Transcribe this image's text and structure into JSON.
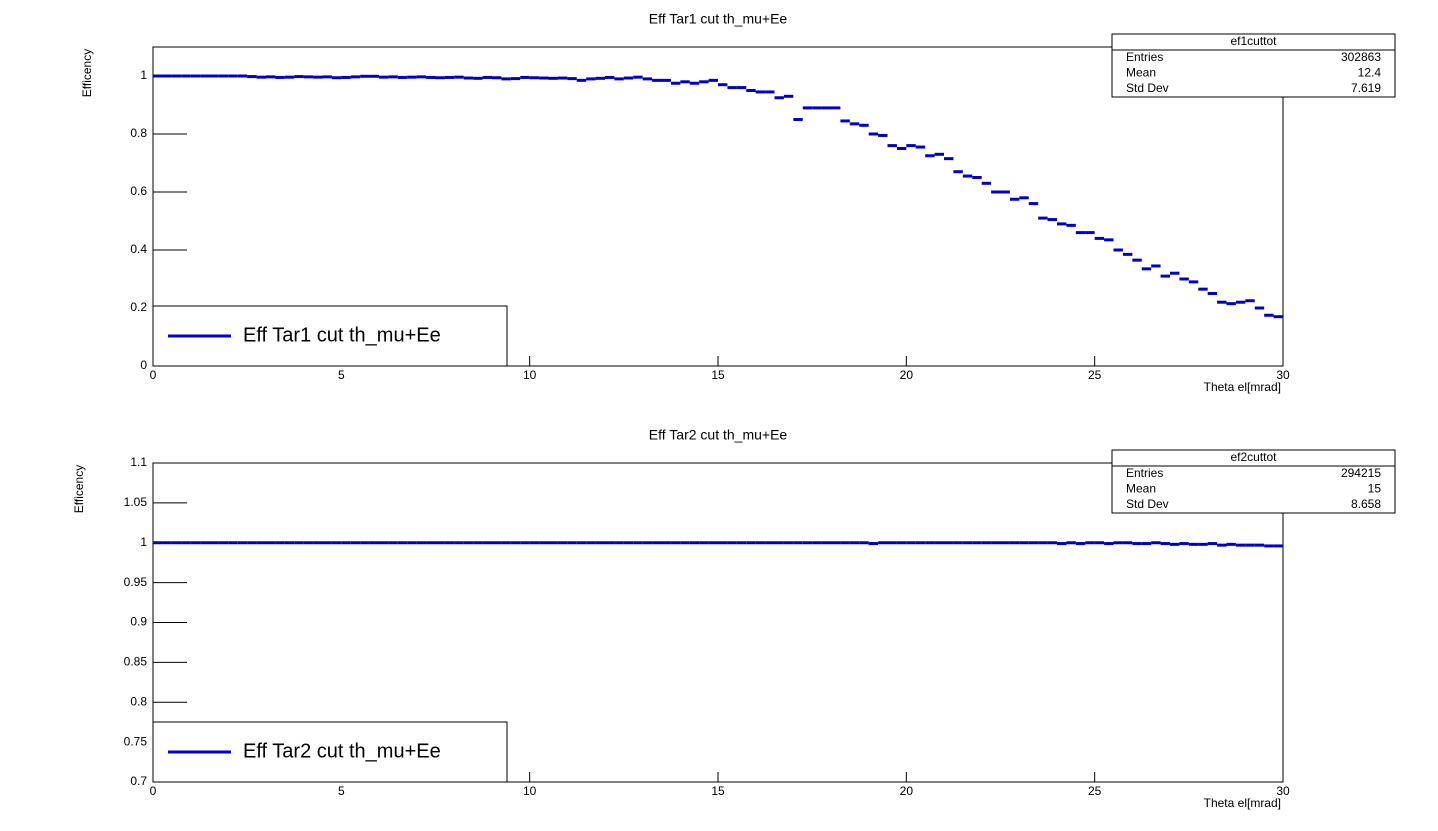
{
  "chart_data": [
    {
      "type": "histogram",
      "title": "Eff Tar1 cut th_mu+Ee",
      "x_label": "Theta el[mrad]",
      "y_label": "Efficency",
      "xlim": [
        0,
        30
      ],
      "ylim": [
        0,
        1.1
      ],
      "xticks": [
        0,
        5,
        10,
        15,
        20,
        25,
        30
      ],
      "yticks": [
        0,
        0.2,
        0.4,
        0.6,
        0.8,
        1
      ],
      "legend": "bottom-left",
      "stats": {
        "name": "ef1cuttot",
        "rows": [
          {
            "label": "Entries",
            "value": 302863
          },
          {
            "label": "Mean",
            "value": 12.4
          },
          {
            "label": "Std Dev",
            "value": 7.619
          }
        ]
      },
      "bins": [
        0,
        0.25,
        0.5,
        0.75,
        1,
        1.25,
        1.5,
        1.75,
        2,
        2.25,
        2.5,
        2.75,
        3,
        3.25,
        3.5,
        3.75,
        4,
        4.25,
        4.5,
        4.75,
        5,
        5.25,
        5.5,
        5.75,
        6,
        6.25,
        6.5,
        6.75,
        7,
        7.25,
        7.5,
        7.75,
        8,
        8.25,
        8.5,
        8.75,
        9,
        9.25,
        9.5,
        9.75,
        10,
        10.25,
        10.5,
        10.75,
        11,
        11.25,
        11.5,
        11.75,
        12,
        12.25,
        12.5,
        12.75,
        13,
        13.25,
        13.5,
        13.75,
        14,
        14.25,
        14.5,
        14.75,
        15,
        15.25,
        15.5,
        15.75,
        16,
        16.25,
        16.5,
        16.75,
        17,
        17.25,
        17.5,
        17.75,
        18,
        18.25,
        18.5,
        18.75,
        19,
        19.25,
        19.5,
        19.75,
        20,
        20.25,
        20.5,
        20.75,
        21,
        21.25,
        21.5,
        21.75,
        22,
        22.25,
        22.5,
        22.75,
        23,
        23.25,
        23.5,
        23.75,
        24,
        24.25,
        24.5,
        24.75,
        25,
        25.25,
        25.5,
        25.75,
        26,
        26.25,
        26.5,
        26.75,
        27,
        27.25,
        27.5,
        27.75,
        28,
        28.25,
        28.5,
        28.75,
        29,
        29.25,
        29.5,
        29.75,
        30
      ],
      "series": [
        {
          "name": "Eff Tar1 cut th_mu+Ee",
          "color": "#0000cc",
          "values": [
            1,
            1,
            1,
            1,
            1,
            1,
            1,
            1,
            1,
            1,
            0.998,
            0.996,
            0.997,
            0.995,
            0.996,
            0.998,
            0.997,
            0.996,
            0.997,
            0.994,
            0.995,
            0.997,
            0.999,
            0.999,
            0.996,
            0.997,
            0.995,
            0.996,
            0.997,
            0.995,
            0.994,
            0.995,
            0.996,
            0.993,
            0.992,
            0.995,
            0.994,
            0.99,
            0.991,
            0.995,
            0.994,
            0.993,
            0.992,
            0.993,
            0.991,
            0.985,
            0.99,
            0.992,
            0.995,
            0.99,
            0.993,
            0.996,
            0.99,
            0.985,
            0.985,
            0.975,
            0.98,
            0.975,
            0.98,
            0.985,
            0.97,
            0.96,
            0.96,
            0.95,
            0.945,
            0.945,
            0.925,
            0.93,
            0.85,
            0.89,
            0.89,
            0.89,
            0.89,
            0.845,
            0.835,
            0.83,
            0.8,
            0.795,
            0.76,
            0.75,
            0.76,
            0.755,
            0.725,
            0.73,
            0.715,
            0.67,
            0.655,
            0.65,
            0.63,
            0.6,
            0.6,
            0.575,
            0.58,
            0.56,
            0.51,
            0.505,
            0.49,
            0.485,
            0.46,
            0.46,
            0.44,
            0.435,
            0.4,
            0.385,
            0.365,
            0.335,
            0.345,
            0.31,
            0.32,
            0.3,
            0.29,
            0.265,
            0.25,
            0.22,
            0.215,
            0.22,
            0.225,
            0.2,
            0.175,
            0.17
          ]
        }
      ]
    },
    {
      "type": "histogram",
      "title": "Eff Tar2 cut th_mu+Ee",
      "x_label": "Theta el[mrad]",
      "y_label": "Efficency",
      "xlim": [
        0,
        30
      ],
      "ylim": [
        0.7,
        1.1
      ],
      "xticks": [
        0,
        5,
        10,
        15,
        20,
        25,
        30
      ],
      "yticks": [
        0.7,
        0.75,
        0.8,
        0.85,
        0.9,
        0.95,
        1,
        1.05,
        1.1
      ],
      "legend": "bottom-left",
      "stats": {
        "name": "ef2cuttot",
        "rows": [
          {
            "label": "Entries",
            "value": 294215
          },
          {
            "label": "Mean",
            "value": 15
          },
          {
            "label": "Std Dev",
            "value": 8.658
          }
        ]
      },
      "bins": [
        0,
        0.25,
        0.5,
        0.75,
        1,
        1.25,
        1.5,
        1.75,
        2,
        2.25,
        2.5,
        2.75,
        3,
        3.25,
        3.5,
        3.75,
        4,
        4.25,
        4.5,
        4.75,
        5,
        5.25,
        5.5,
        5.75,
        6,
        6.25,
        6.5,
        6.75,
        7,
        7.25,
        7.5,
        7.75,
        8,
        8.25,
        8.5,
        8.75,
        9,
        9.25,
        9.5,
        9.75,
        10,
        10.25,
        10.5,
        10.75,
        11,
        11.25,
        11.5,
        11.75,
        12,
        12.25,
        12.5,
        12.75,
        13,
        13.25,
        13.5,
        13.75,
        14,
        14.25,
        14.5,
        14.75,
        15,
        15.25,
        15.5,
        15.75,
        16,
        16.25,
        16.5,
        16.75,
        17,
        17.25,
        17.5,
        17.75,
        18,
        18.25,
        18.5,
        18.75,
        19,
        19.25,
        19.5,
        19.75,
        20,
        20.25,
        20.5,
        20.75,
        21,
        21.25,
        21.5,
        21.75,
        22,
        22.25,
        22.5,
        22.75,
        23,
        23.25,
        23.5,
        23.75,
        24,
        24.25,
        24.5,
        24.75,
        25,
        25.25,
        25.5,
        25.75,
        26,
        26.25,
        26.5,
        26.75,
        27,
        27.25,
        27.5,
        27.75,
        28,
        28.25,
        28.5,
        28.75,
        29,
        29.25,
        29.5,
        29.75,
        30
      ],
      "series": [
        {
          "name": "Eff Tar2 cut th_mu+Ee",
          "color": "#0000cc",
          "values": [
            1,
            1,
            1,
            1,
            1,
            1,
            1,
            1,
            1,
            1,
            1,
            1,
            1,
            1,
            1,
            1,
            1,
            1,
            1,
            1,
            1,
            1,
            1,
            1,
            1,
            1,
            1,
            1,
            1,
            1,
            1,
            1,
            1,
            1,
            1,
            1,
            1,
            1,
            1,
            1,
            1,
            1,
            1,
            1,
            1,
            1,
            1,
            1,
            1,
            1,
            1,
            1,
            1,
            1,
            1,
            1,
            1,
            1,
            1,
            1,
            1,
            1,
            1,
            1,
            1,
            1,
            1,
            1,
            1,
            1,
            1,
            1,
            1,
            1,
            1,
            1,
            0.999,
            1,
            1,
            1,
            1,
            1,
            1,
            1,
            1,
            1,
            1,
            1,
            1,
            1,
            1,
            1,
            1,
            1,
            1,
            1,
            0.999,
            1,
            0.999,
            1,
            1,
            0.999,
            1,
            1,
            0.999,
            0.999,
            1,
            0.999,
            0.998,
            0.999,
            0.998,
            0.998,
            0.999,
            0.997,
            0.998,
            0.997,
            0.997,
            0.997,
            0.996,
            0.996
          ]
        }
      ]
    }
  ]
}
